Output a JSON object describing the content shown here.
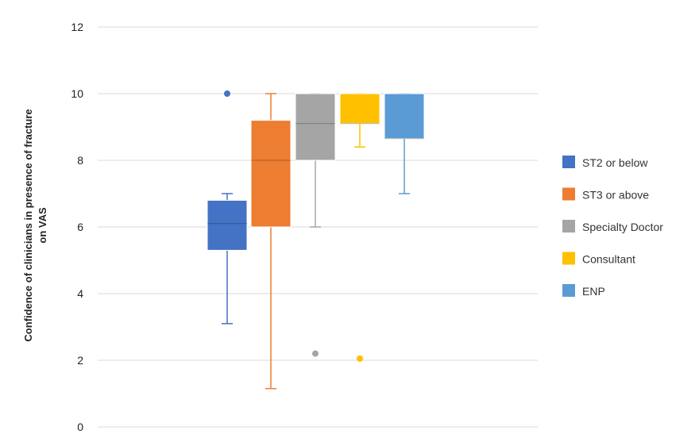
{
  "chart_data": {
    "type": "box",
    "title": "",
    "xlabel": "",
    "ylabel_lines": [
      "Confidence of clinicians in presence of fracture",
      "on VAS"
    ],
    "ylim": [
      0,
      12
    ],
    "yticks": [
      0,
      2,
      4,
      6,
      8,
      10,
      12
    ],
    "grid": true,
    "legend_position": "right",
    "series": [
      {
        "name": "ST2 or below",
        "color": "#4472C4",
        "whisker_low": 3.1,
        "q1": 5.3,
        "median": 6.1,
        "q3": 6.8,
        "whisker_high": 7.0,
        "outliers": [
          10.0
        ]
      },
      {
        "name": "ST3 or above",
        "color": "#ED7D31",
        "whisker_low": 1.15,
        "q1": 6.0,
        "median": 8.0,
        "q3": 9.2,
        "whisker_high": 10.0,
        "outliers": []
      },
      {
        "name": "Specialty Doctor",
        "color": "#A5A5A5",
        "whisker_low": 6.0,
        "q1": 8.0,
        "median": 9.1,
        "q3": 10.0,
        "whisker_high": 10.0,
        "outliers": [
          2.2
        ]
      },
      {
        "name": "Consultant",
        "color": "#FFC000",
        "whisker_low": 8.4,
        "q1": 9.1,
        "median": 9.1,
        "q3": 10.0,
        "whisker_high": 10.0,
        "outliers": [
          2.05
        ]
      },
      {
        "name": "ENP",
        "color": "#5B9BD5",
        "whisker_low": 7.0,
        "q1": 8.65,
        "median": 8.65,
        "q3": 10.0,
        "whisker_high": 10.0,
        "outliers": []
      }
    ]
  }
}
